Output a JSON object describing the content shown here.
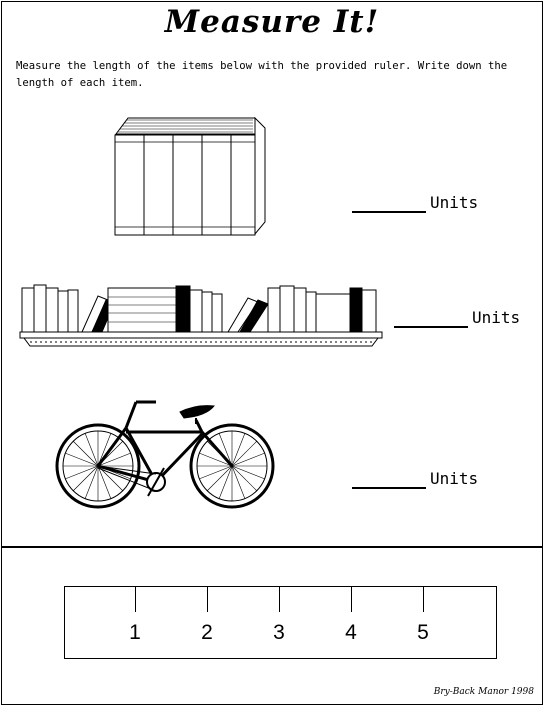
{
  "title": "Measure It!",
  "instructions": "Measure the length of the items below with the provided ruler. Write down the length of each item.",
  "items": [
    {
      "name": "books-stack",
      "unit_label": "Units"
    },
    {
      "name": "bookshelf",
      "unit_label": "Units"
    },
    {
      "name": "bicycle",
      "unit_label": "Units"
    }
  ],
  "ruler": {
    "ticks": [
      "1",
      "2",
      "3",
      "4",
      "5"
    ]
  },
  "credit": "Bry-Back Manor 1998"
}
